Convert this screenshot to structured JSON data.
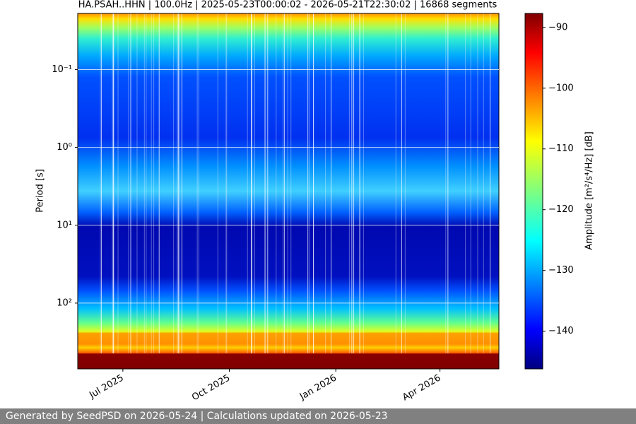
{
  "chart_data": {
    "type": "spectrogram",
    "title": "HA.PSAH..HHN | 100.0Hz | 2025-05-23T00:00:02 - 2026-05-21T22:30:02 | 16868 segments",
    "ylabel": "Period [s]",
    "colorbar_label": "Amplitude [m²/s⁴/Hz] [dB]",
    "colormap": "jet",
    "xlim": [
      "2025-05-23T00:00:02",
      "2026-05-21T22:30:02"
    ],
    "xticks": [
      {
        "value": "2025-07",
        "label": "Jul 2025"
      },
      {
        "value": "2025-10",
        "label": "Oct 2025"
      },
      {
        "value": "2026-01",
        "label": "Jan 2026"
      },
      {
        "value": "2026-04",
        "label": "Apr 2026"
      }
    ],
    "ylim": [
      0.019,
      700
    ],
    "yscale": "log",
    "yinverted": true,
    "yticks": [
      {
        "value": 0.1,
        "label": "10⁻¹"
      },
      {
        "value": 1,
        "label": "10⁰"
      },
      {
        "value": 10,
        "label": "10¹"
      },
      {
        "value": 100,
        "label": "10²"
      }
    ],
    "grid": true,
    "clim": [
      -146.2,
      -87.7
    ],
    "cticks": [
      {
        "value": -90,
        "label": "−90"
      },
      {
        "value": -100,
        "label": "−100"
      },
      {
        "value": -110,
        "label": "−110"
      },
      {
        "value": -120,
        "label": "−120"
      },
      {
        "value": -130,
        "label": "−130"
      },
      {
        "value": -140,
        "label": "−140"
      }
    ]
  },
  "footer": "Generated by SeedPSD on 2026-05-24 | Calculations updated on 2026-05-23"
}
